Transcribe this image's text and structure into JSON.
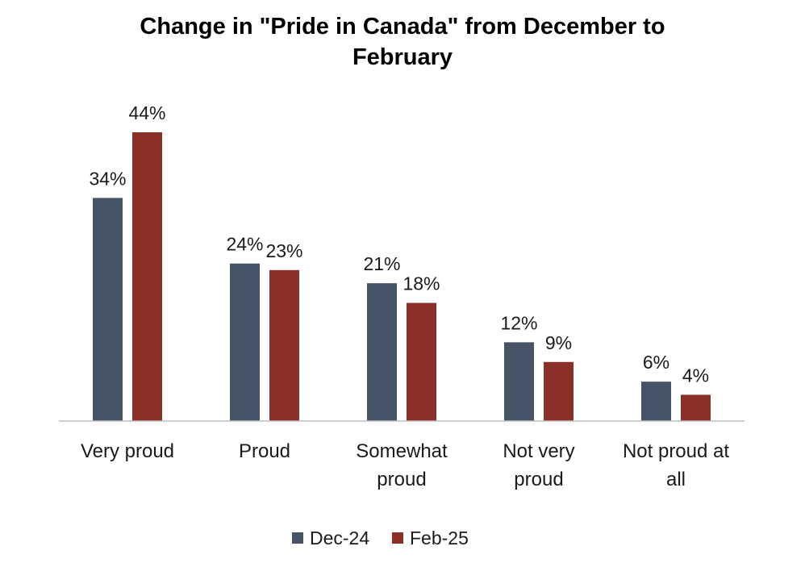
{
  "chart_data": {
    "type": "bar",
    "title_lines": [
      "Change in \"Pride in Canada\" from December to",
      "February"
    ],
    "categories": [
      [
        "Very proud"
      ],
      [
        "Proud"
      ],
      [
        "Somewhat",
        "proud"
      ],
      [
        "Not very",
        "proud"
      ],
      [
        "Not proud at",
        "all"
      ]
    ],
    "series": [
      {
        "name": "Dec-24",
        "color": "#475468",
        "values": [
          34,
          24,
          21,
          12,
          6
        ],
        "labels": [
          "34%",
          "24%",
          "21%",
          "12%",
          "6%"
        ]
      },
      {
        "name": "Feb-25",
        "color": "#8b2f29",
        "values": [
          44,
          23,
          18,
          9,
          4
        ],
        "labels": [
          "44%",
          "23%",
          "18%",
          "9%",
          "4%"
        ]
      }
    ],
    "ylim": [
      0,
      44
    ],
    "grid": false,
    "legend_position": "bottom"
  }
}
